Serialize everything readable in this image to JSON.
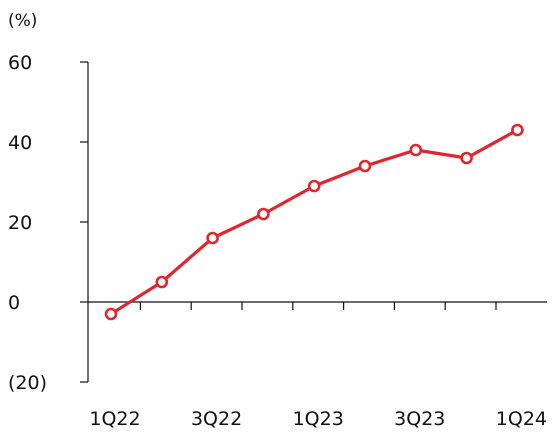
{
  "chart_data": {
    "type": "line",
    "title": "",
    "ylabel": "(%)",
    "xlabel": "",
    "ylim": [
      -20,
      60
    ],
    "yticks": [
      -20,
      0,
      20,
      40,
      60
    ],
    "ytick_labels": [
      "(20)",
      "0",
      "20",
      "40",
      "60"
    ],
    "categories": [
      "1Q22",
      "2Q22",
      "3Q22",
      "4Q22",
      "1Q23",
      "2Q23",
      "3Q23",
      "4Q23",
      "1Q24"
    ],
    "xtick_labels": [
      "1Q22",
      "",
      "3Q22",
      "",
      "1Q23",
      "",
      "3Q23",
      "",
      "1Q24"
    ],
    "series": [
      {
        "values": [
          -3,
          5,
          16,
          22,
          29,
          34,
          38,
          36,
          43
        ],
        "color": "#e0262e"
      }
    ],
    "grid": false,
    "legend": "none"
  }
}
